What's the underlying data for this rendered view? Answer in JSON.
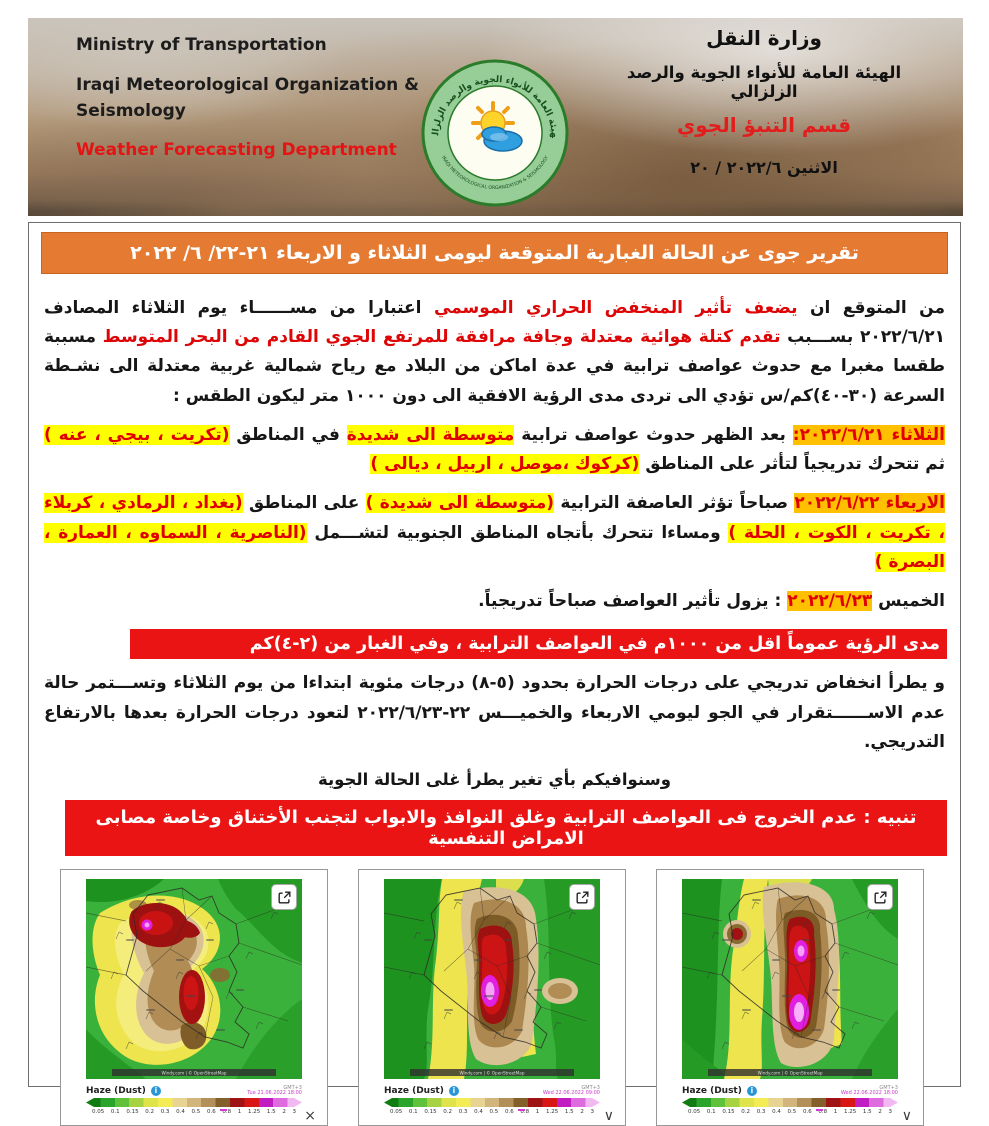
{
  "header": {
    "en": {
      "line1": "Ministry of Transportation",
      "line2": "Iraqi Meteorological Organization &",
      "line3": "Seismology",
      "dept": "Weather Forecasting Department"
    },
    "ar": {
      "ministry": "وزارة النقل",
      "org": "الهيئة العامة للأنواء الجوية والرصد الزلزالي",
      "dept": "قسم التنبؤ الجوي",
      "date": "الاثنين   ٢٠٢٢/٦ / ٢٠"
    },
    "logo_ring_top": "الهيئة العامة للأنواء الجوية والرصد الزلزالي",
    "logo_ring_bottom": "IRAQI METEOROLOGICAL ORGANIZATION & SEISMOLOGY"
  },
  "report": {
    "title": "تقرير جوى عن الحالة الغبارية المتوقعة ليومى الثلاثاء و الاربعاء ٢١-٢٢/ ٦/ ٢٠٢٢",
    "intro": [
      {
        "t": "من المتوقع ان ",
        "s": "n"
      },
      {
        "t": "يضعف تأثير المنخفض الحراري الموسمي",
        "s": "rb"
      },
      {
        "t": " اعتبارا من مســــــاء يوم الثلاثاء المصادف ٢٠٢٢/٦/٢١ بســـبب ",
        "s": "n"
      },
      {
        "t": "تقدم كتلة هوائية معتدلة وجافة مرافقة للمرتفع الجوي القادم من البحر المتوسط",
        "s": "r"
      },
      {
        "t": " مسببة طقسا مغبرا مع حدوث عواصف ترابية في عدة اماكن من البلاد مع رياح شمالية غربية معتدلة الى نشـطة السرعة (٣٠-٤٠)كم/س تؤدي الى تردى مدى الرؤية الافقية الى دون ١٠٠٠ متر ليكون الطقس  :",
        "s": "n"
      }
    ],
    "tuesday": [
      {
        "t": "الثلاثاء ٢٠٢٢/٦/٢١:",
        "s": "ho"
      },
      {
        "t": " بعد الظهر حدوث عواصف ترابية ",
        "s": "n"
      },
      {
        "t": "متوسطة الى شديدة",
        "s": "hy"
      },
      {
        "t": " في المناطق  ",
        "s": "n"
      },
      {
        "t": "(تكريت ، بيجي ، عنه )",
        "s": "hy"
      },
      {
        "t": " ثم تتحرك تدريجياً لتأثر على المناطق ",
        "s": "n"
      },
      {
        "t": "(كركوك ،موصل ، اربيل ، ديالى )",
        "s": "hy"
      }
    ],
    "wednesday": [
      {
        "t": "الاربعاء ٢٠٢٢/٦/٢٢",
        "s": "ho"
      },
      {
        "t": " صباحاً تؤثر العاصفة الترابية ",
        "s": "n"
      },
      {
        "t": "(متوسطة الى شديدة )",
        "s": "hy"
      },
      {
        "t": " على  المناطق ",
        "s": "n"
      },
      {
        "t": "(بغداد ، الرمادي ، كربلاء ، تكريت ، الكوت ، الحلة )",
        "s": "hy"
      },
      {
        "t": " ومساءا تتحرك بأتجاه المناطق الجنوبية لتشـــمل ",
        "s": "n"
      },
      {
        "t": "(الناصرية ، السماوه ، العمارة ، البصرة )",
        "s": "hy"
      }
    ],
    "thursday": [
      {
        "t": "الخميس ",
        "s": "b"
      },
      {
        "t": "٢٠٢٢/٦/٢٣",
        "s": "ho"
      },
      {
        "t": " : يزول تأثير العواصف صباحاً تدريجياً.",
        "s": "n"
      }
    ],
    "visibility_banner": "مدى الرؤية عموماً  اقل من ١٠٠٠م في العواصف الترابية ، وفي الغبار من (٢-٤)كم",
    "temperature": "و يطرأ انخفاض تدريجي على درجات الحرارة بحدود (٥-٨) درجات مئوية ابتداءا من يوم الثلاثاء  وتســـتمر  حالة عدم الاســــــتقرار في الجو ليومي الاربعاء والخميـــس ٢٢-٢٠٢٢/٦/٢٣ لتعود درجات الحرارة بعدها بالارتفاع التدريجي.",
    "followup_note": "وسنوافيكم بأي تغير يطرأ غلى الحالة الجوية",
    "warning": "تنبيه : عدم الخروج فى العواصف الترابية وغلق النوافذ والابواب لتجنب الأختناق وخاصة مصابى الامراض التنفسية"
  },
  "colors": {
    "accent_orange": "#e57b33",
    "banner_red": "#ea1414",
    "highlight_yellow": "#ffff00",
    "highlight_orange": "#ffc000",
    "text_red": "#e00000"
  },
  "maps": {
    "legend_label": "Haze (Dust)",
    "timezone_label": "GMT+3",
    "attribution": "Windy.com | © OpenStreetMap",
    "scale_ticks": [
      "0.05",
      "0.1",
      "0.15",
      "0.2",
      "0.3",
      "0.4",
      "0.5",
      "0.6",
      "0.8",
      "1",
      "1.25",
      "1.5",
      "2",
      "3"
    ],
    "scale_colors": [
      "#117c11",
      "#2aa42a",
      "#5fc23a",
      "#a7d342",
      "#e0e44c",
      "#f4ec55",
      "#e7d392",
      "#d2b57c",
      "#b3905a",
      "#845f2b",
      "#9e1414",
      "#d81616",
      "#c01ec0",
      "#df6cdf",
      "#f2b8f2"
    ],
    "items": [
      {
        "name": "tuesday-afternoon",
        "timestamp": "Tue 21.06.2022 18:00",
        "corner_glyph": "×",
        "corner_icon": "close-icon"
      },
      {
        "name": "wednesday-morning",
        "timestamp": "Wed 22.06.2022 09:00",
        "corner_glyph": "∨",
        "corner_icon": "chevron-down-icon"
      },
      {
        "name": "wednesday-afternoon",
        "timestamp": "Wed 22.06.2022 18:00",
        "corner_glyph": "∨",
        "corner_icon": "chevron-down-icon"
      }
    ]
  }
}
